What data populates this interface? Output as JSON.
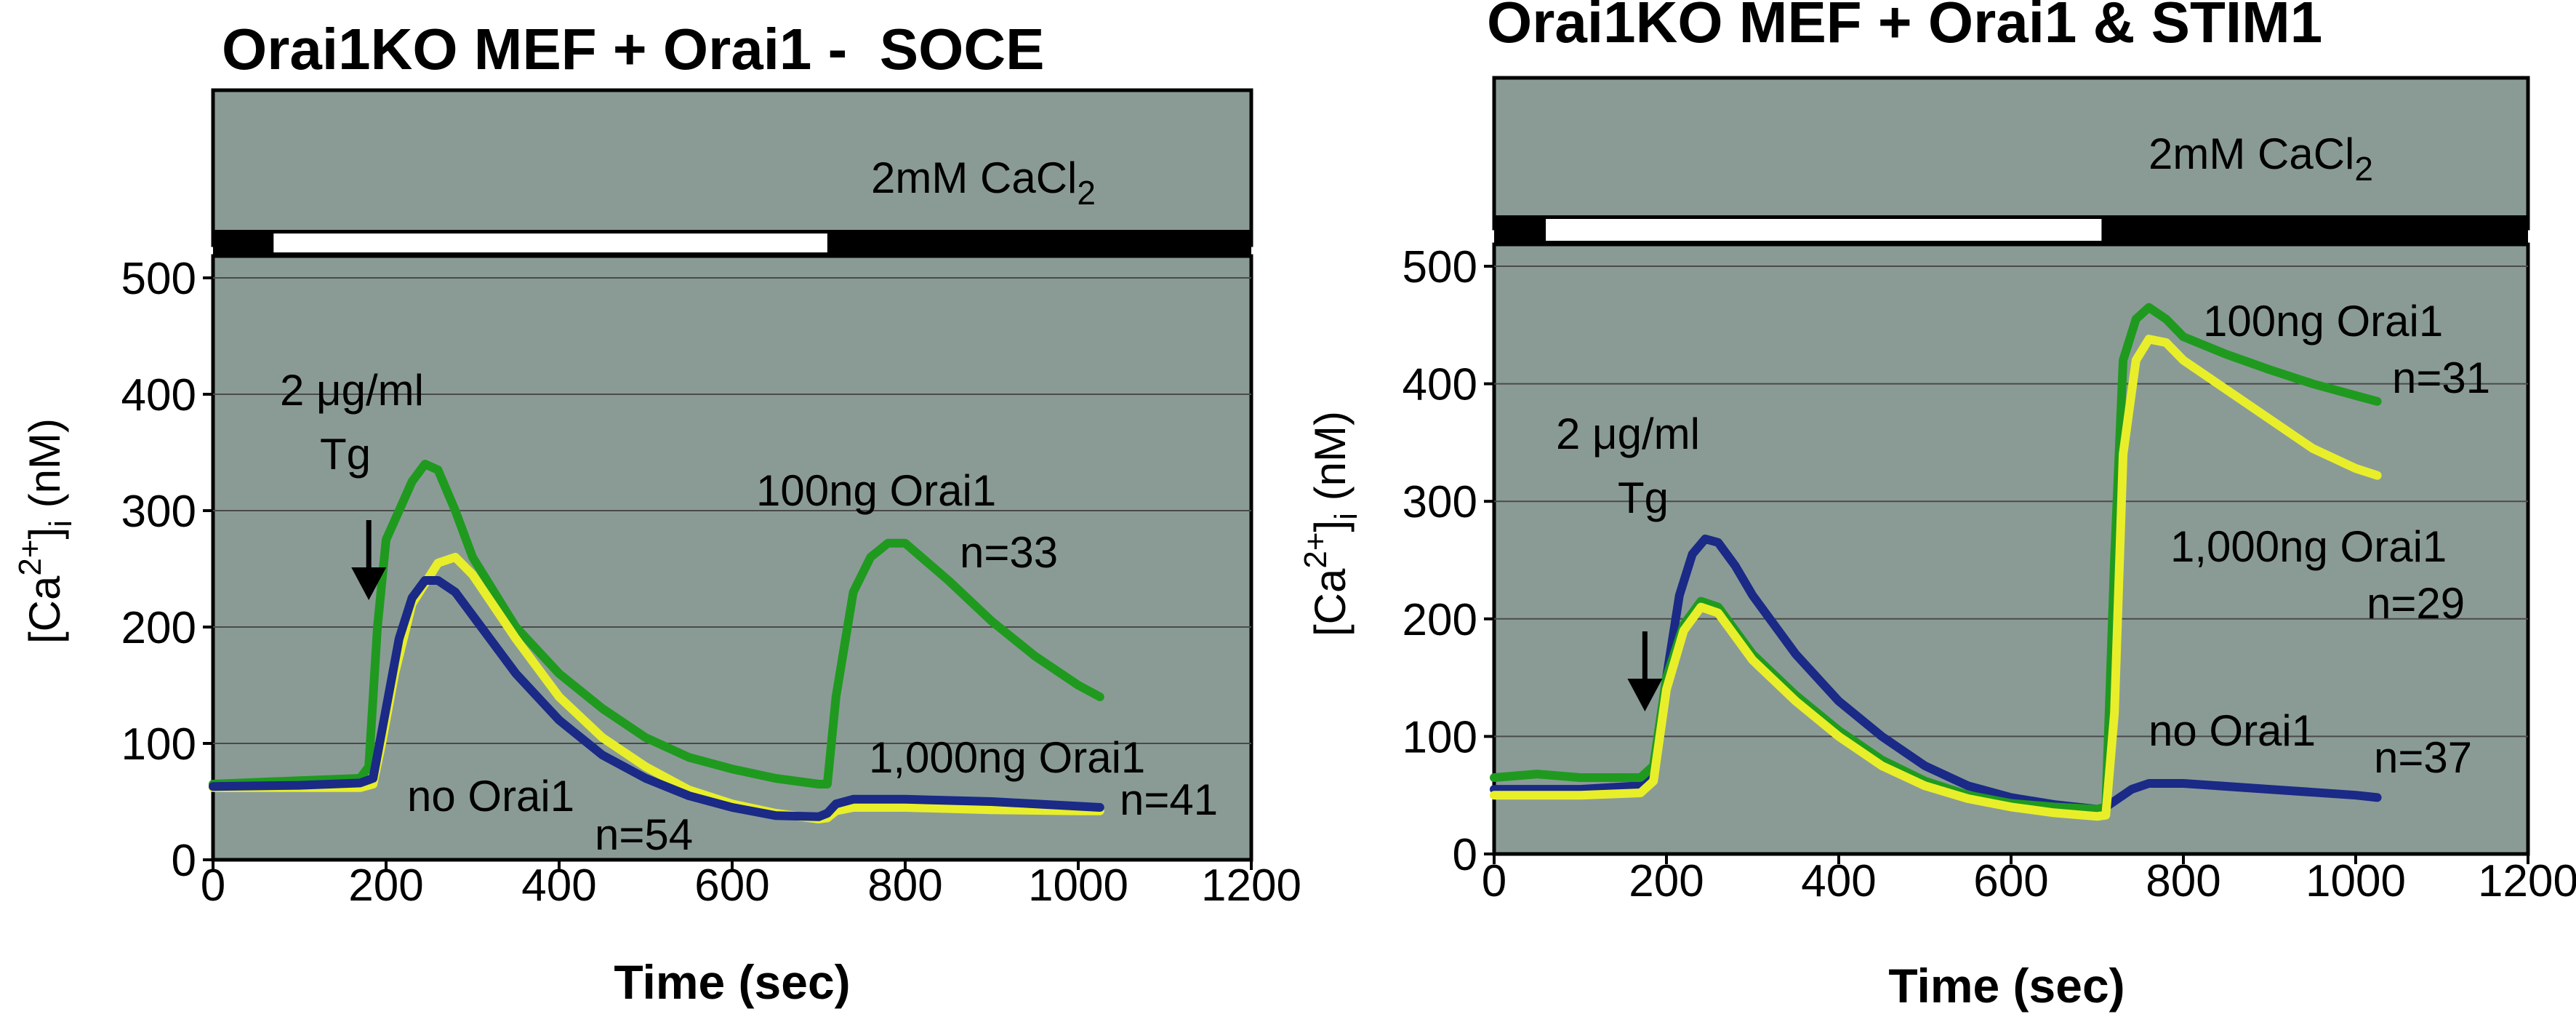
{
  "chart_data": [
    {
      "type": "line",
      "title": "Orai1KO MEF + Orai1 -  SOCE",
      "xlabel": "Time (sec)",
      "ylabel": {
        "pre": "[Ca",
        "sup": "2+",
        "post": "]",
        "sub": "i",
        "tail": " (nM)"
      },
      "xlim": [
        0,
        1200
      ],
      "ylim": [
        0,
        500
      ],
      "xticks": [
        0,
        200,
        400,
        600,
        800,
        1000,
        1200
      ],
      "yticks": [
        0,
        100,
        200,
        300,
        400,
        500
      ],
      "solution_bar": {
        "label_pre": "2mM CaCl",
        "label_sub": "2",
        "zero_ca_from": 70,
        "zero_ca_to": 710
      },
      "arrow_at": 180,
      "annotations": {
        "tg_line1": "2 μg/ml",
        "tg_line2": "Tg",
        "green_label": "100ng Orai1",
        "green_n": "n=33",
        "yellow_label": "1,000ng Orai1",
        "yellow_n": "n=41",
        "blue_label": "no Orai1",
        "blue_n": "n=54"
      },
      "series": [
        {
          "name": "100ng Orai1",
          "color": "#1f9a1f",
          "x": [
            0,
            100,
            170,
            180,
            190,
            200,
            215,
            230,
            245,
            260,
            280,
            300,
            350,
            400,
            450,
            500,
            550,
            600,
            650,
            700,
            710,
            720,
            740,
            760,
            780,
            800,
            850,
            900,
            950,
            1000,
            1025
          ],
          "y": [
            65,
            68,
            70,
            80,
            200,
            275,
            300,
            325,
            340,
            335,
            300,
            260,
            200,
            160,
            130,
            105,
            88,
            78,
            70,
            65,
            65,
            140,
            230,
            260,
            272,
            272,
            240,
            205,
            175,
            150,
            140
          ]
        },
        {
          "name": "1,000ng Orai1",
          "color": "#e8ef2a",
          "x": [
            0,
            100,
            170,
            185,
            195,
            210,
            230,
            260,
            280,
            300,
            350,
            400,
            450,
            500,
            550,
            600,
            650,
            700,
            710,
            720,
            740,
            800,
            900,
            1000,
            1025
          ],
          "y": [
            62,
            62,
            62,
            65,
            100,
            160,
            220,
            255,
            260,
            245,
            190,
            140,
            105,
            80,
            60,
            48,
            40,
            35,
            36,
            42,
            45,
            45,
            43,
            42,
            42
          ]
        },
        {
          "name": "no Orai1",
          "color": "#1a2a86",
          "x": [
            0,
            100,
            170,
            185,
            200,
            215,
            230,
            245,
            260,
            280,
            300,
            350,
            400,
            450,
            500,
            550,
            600,
            650,
            700,
            710,
            720,
            740,
            800,
            900,
            1000,
            1025
          ],
          "y": [
            63,
            64,
            66,
            70,
            130,
            190,
            225,
            240,
            240,
            230,
            210,
            160,
            120,
            90,
            70,
            55,
            45,
            38,
            37,
            40,
            48,
            52,
            52,
            50,
            46,
            45
          ]
        }
      ]
    },
    {
      "type": "line",
      "title": "Orai1KO MEF + Orai1 & STIM1",
      "xlabel": "Time (sec)",
      "ylabel": {
        "pre": "[Ca",
        "sup": "2+",
        "post": "]",
        "sub": "i",
        "tail": " (nM)"
      },
      "xlim": [
        0,
        1200
      ],
      "ylim": [
        0,
        500
      ],
      "xticks": [
        0,
        200,
        400,
        600,
        800,
        1000,
        1200
      ],
      "yticks": [
        0,
        100,
        200,
        300,
        400,
        500
      ],
      "solution_bar": {
        "label_pre": "2mM CaCl",
        "label_sub": "2",
        "zero_ca_from": 60,
        "zero_ca_to": 705
      },
      "arrow_at": 175,
      "annotations": {
        "tg_line1": "2 μg/ml",
        "tg_line2": "Tg",
        "green_label": "100ng Orai1",
        "green_n": "n=31",
        "yellow_label": "1,000ng Orai1",
        "yellow_n": "n=29",
        "blue_label": "no Orai1",
        "blue_n": "n=37"
      },
      "series": [
        {
          "name": "no Orai1",
          "color": "#1a2a86",
          "x": [
            0,
            100,
            170,
            185,
            200,
            215,
            230,
            245,
            260,
            280,
            300,
            350,
            400,
            450,
            500,
            550,
            600,
            650,
            700,
            710,
            720,
            740,
            760,
            800,
            900,
            1000,
            1025
          ],
          "y": [
            55,
            55,
            58,
            70,
            150,
            220,
            255,
            268,
            265,
            245,
            220,
            170,
            130,
            100,
            75,
            58,
            48,
            42,
            38,
            40,
            45,
            55,
            60,
            60,
            55,
            50,
            48
          ]
        },
        {
          "name": "100ng Orai1",
          "color": "#1f9a1f",
          "x": [
            0,
            50,
            100,
            170,
            185,
            200,
            220,
            240,
            260,
            280,
            300,
            350,
            400,
            450,
            500,
            550,
            600,
            650,
            700,
            710,
            720,
            730,
            745,
            760,
            780,
            800,
            850,
            900,
            950,
            1000,
            1025
          ],
          "y": [
            65,
            68,
            65,
            65,
            75,
            150,
            195,
            215,
            210,
            190,
            170,
            135,
            105,
            80,
            62,
            50,
            43,
            40,
            38,
            40,
            250,
            420,
            455,
            465,
            455,
            440,
            425,
            412,
            400,
            390,
            385
          ]
        },
        {
          "name": "1,000ng Orai1",
          "color": "#e8ef2a",
          "x": [
            0,
            100,
            170,
            185,
            200,
            220,
            240,
            260,
            280,
            300,
            350,
            400,
            450,
            500,
            550,
            600,
            650,
            700,
            710,
            720,
            730,
            745,
            760,
            780,
            800,
            850,
            900,
            950,
            1000,
            1025
          ],
          "y": [
            50,
            50,
            52,
            62,
            140,
            190,
            210,
            205,
            185,
            165,
            130,
            100,
            75,
            58,
            47,
            40,
            35,
            32,
            33,
            120,
            340,
            420,
            438,
            435,
            420,
            395,
            370,
            345,
            328,
            322
          ]
        }
      ]
    }
  ]
}
